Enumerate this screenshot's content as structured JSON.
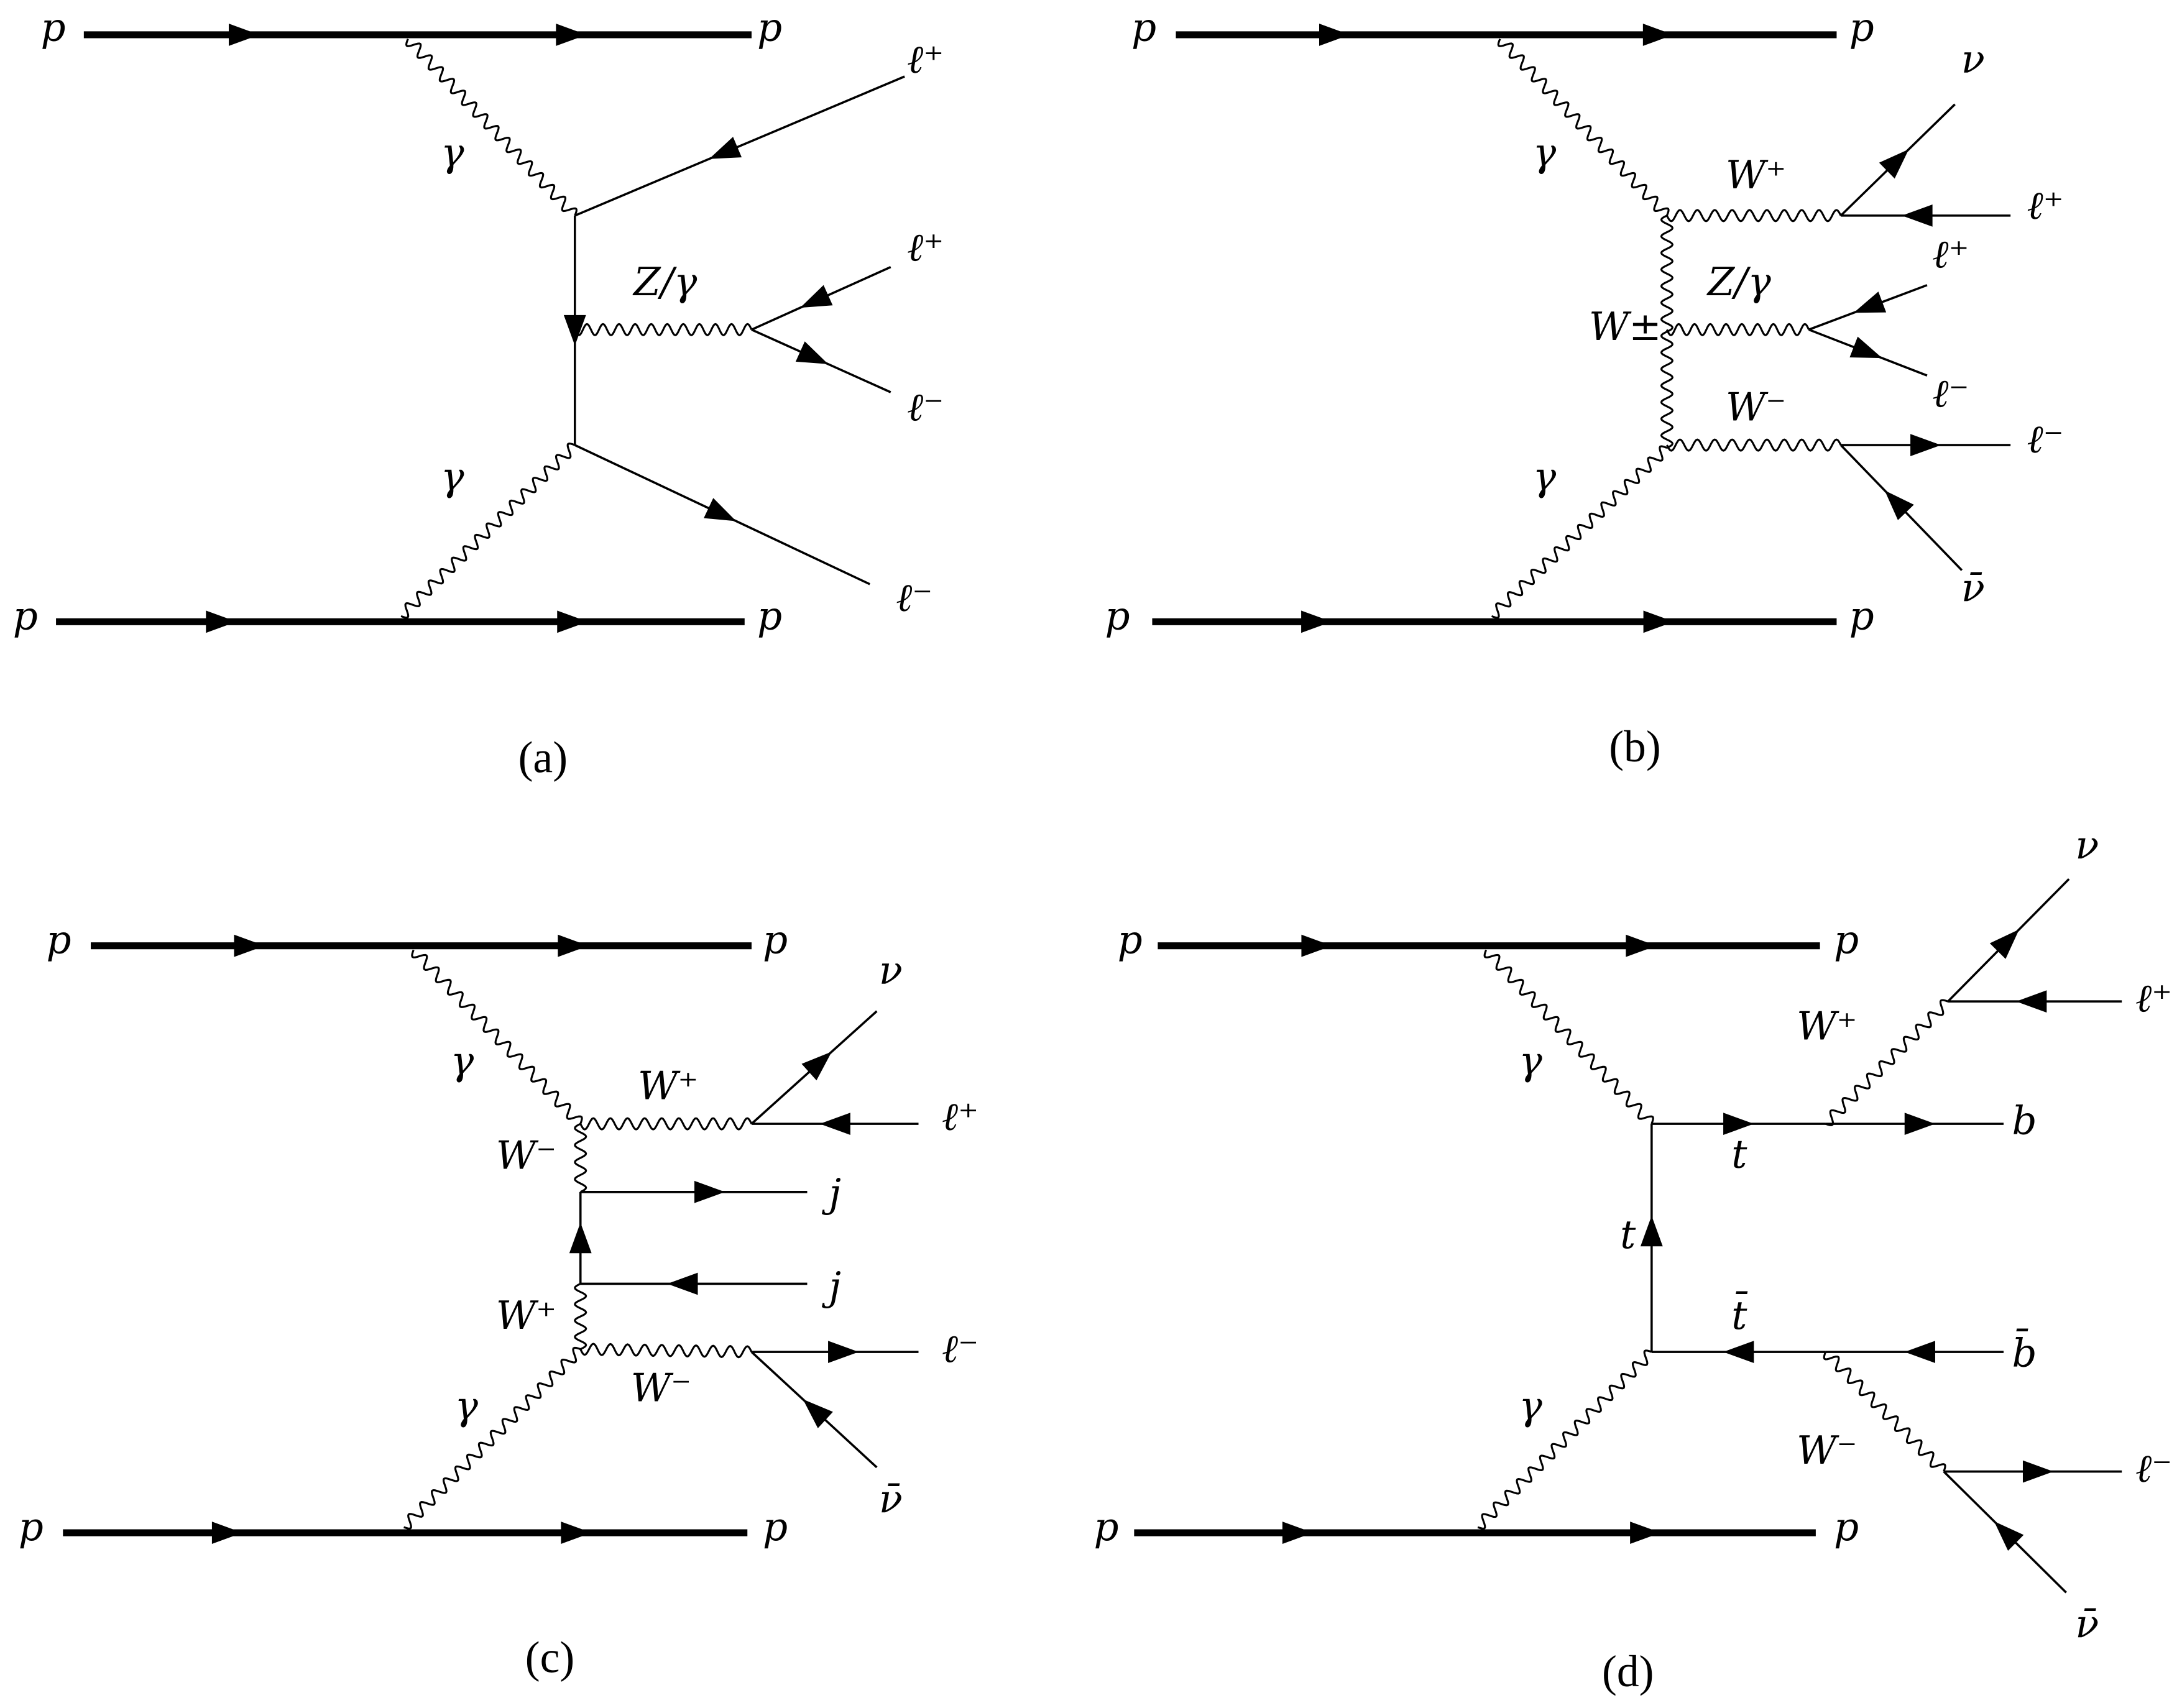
{
  "panels": [
    {
      "caption": "(a)",
      "labels": [
        "p",
        "p",
        "p",
        "p",
        "γ",
        "γ",
        "ℓ⁺",
        "Z/γ",
        "ℓ⁺",
        "ℓ⁻",
        "ℓ⁻"
      ]
    },
    {
      "caption": "(b)",
      "labels": [
        "p",
        "p",
        "p",
        "p",
        "γ",
        "γ",
        "W⁺",
        "ν",
        "ℓ⁺",
        "W±",
        "Z/γ",
        "ℓ⁺",
        "ℓ⁻",
        "W⁻",
        "ℓ⁻",
        "ν̄"
      ]
    },
    {
      "caption": "(c)",
      "labels": [
        "p",
        "p",
        "p",
        "p",
        "γ",
        "γ",
        "W⁺",
        "ν",
        "ℓ⁺",
        "W⁻",
        "j",
        "j",
        "W⁺",
        "W⁻",
        "ℓ⁻",
        "ν̄"
      ]
    },
    {
      "caption": "(d)",
      "labels": [
        "p",
        "p",
        "p",
        "p",
        "γ",
        "γ",
        "W⁺",
        "ν",
        "ℓ⁺",
        "t",
        "b",
        "t",
        "t̄",
        "b̄",
        "W⁻",
        "ℓ⁻",
        "ν̄"
      ]
    }
  ],
  "colors": {
    "line": "#000000",
    "background": "#ffffff"
  }
}
